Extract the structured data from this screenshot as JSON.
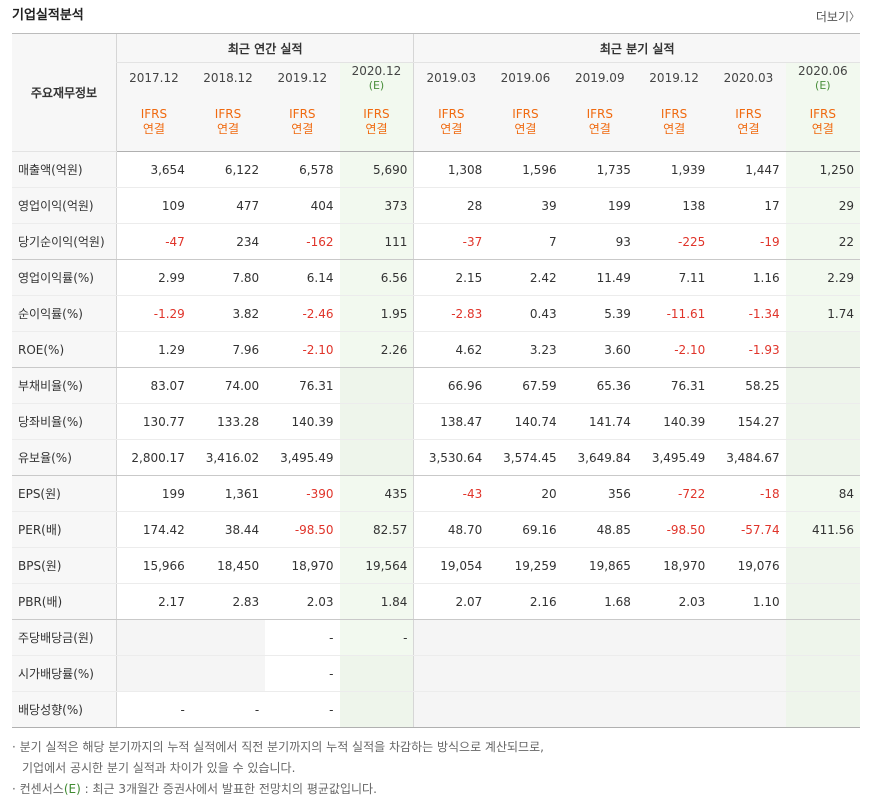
{
  "page_title": "기업실적분석",
  "more_label": "더보기",
  "more_arrow": "〉",
  "table": {
    "label_header": "주요재무정보",
    "groups": [
      {
        "label": "최근 연간 실적"
      },
      {
        "label": "최근 분기 실적"
      }
    ],
    "periods": [
      {
        "date": "2017.12",
        "est": "",
        "ifrs": "IFRS",
        "basis": "연결"
      },
      {
        "date": "2018.12",
        "est": "",
        "ifrs": "IFRS",
        "basis": "연결"
      },
      {
        "date": "2019.12",
        "est": "",
        "ifrs": "IFRS",
        "basis": "연결"
      },
      {
        "date": "2020.12",
        "est": "(E)",
        "ifrs": "IFRS",
        "basis": "연결"
      },
      {
        "date": "2019.03",
        "est": "",
        "ifrs": "IFRS",
        "basis": "연결"
      },
      {
        "date": "2019.06",
        "est": "",
        "ifrs": "IFRS",
        "basis": "연결"
      },
      {
        "date": "2019.09",
        "est": "",
        "ifrs": "IFRS",
        "basis": "연결"
      },
      {
        "date": "2019.12",
        "est": "",
        "ifrs": "IFRS",
        "basis": "연결"
      },
      {
        "date": "2020.03",
        "est": "",
        "ifrs": "IFRS",
        "basis": "연결"
      },
      {
        "date": "2020.06",
        "est": "(E)",
        "ifrs": "IFRS",
        "basis": "연결"
      }
    ],
    "rows": [
      {
        "label": "매출액(억원)",
        "values": [
          "3,654",
          "6,122",
          "6,578",
          "5,690",
          "1,308",
          "1,596",
          "1,735",
          "1,939",
          "1,447",
          "1,250"
        ]
      },
      {
        "label": "영업이익(억원)",
        "values": [
          "109",
          "477",
          "404",
          "373",
          "28",
          "39",
          "199",
          "138",
          "17",
          "29"
        ]
      },
      {
        "label": "당기순이익(억원)",
        "values": [
          "-47",
          "234",
          "-162",
          "111",
          "-37",
          "7",
          "93",
          "-225",
          "-19",
          "22"
        ]
      },
      {
        "label": "영업이익률(%)",
        "values": [
          "2.99",
          "7.80",
          "6.14",
          "6.56",
          "2.15",
          "2.42",
          "11.49",
          "7.11",
          "1.16",
          "2.29"
        ]
      },
      {
        "label": "순이익률(%)",
        "values": [
          "-1.29",
          "3.82",
          "-2.46",
          "1.95",
          "-2.83",
          "0.43",
          "5.39",
          "-11.61",
          "-1.34",
          "1.74"
        ]
      },
      {
        "label": "ROE(%)",
        "values": [
          "1.29",
          "7.96",
          "-2.10",
          "2.26",
          "4.62",
          "3.23",
          "3.60",
          "-2.10",
          "-1.93",
          ""
        ]
      },
      {
        "label": "부채비율(%)",
        "values": [
          "83.07",
          "74.00",
          "76.31",
          "",
          "66.96",
          "67.59",
          "65.36",
          "76.31",
          "58.25",
          ""
        ]
      },
      {
        "label": "당좌비율(%)",
        "values": [
          "130.77",
          "133.28",
          "140.39",
          "",
          "138.47",
          "140.74",
          "141.74",
          "140.39",
          "154.27",
          ""
        ]
      },
      {
        "label": "유보율(%)",
        "values": [
          "2,800.17",
          "3,416.02",
          "3,495.49",
          "",
          "3,530.64",
          "3,574.45",
          "3,649.84",
          "3,495.49",
          "3,484.67",
          ""
        ]
      },
      {
        "label": "EPS(원)",
        "values": [
          "199",
          "1,361",
          "-390",
          "435",
          "-43",
          "20",
          "356",
          "-722",
          "-18",
          "84"
        ]
      },
      {
        "label": "PER(배)",
        "values": [
          "174.42",
          "38.44",
          "-98.50",
          "82.57",
          "48.70",
          "69.16",
          "48.85",
          "-98.50",
          "-57.74",
          "411.56"
        ]
      },
      {
        "label": "BPS(원)",
        "values": [
          "15,966",
          "18,450",
          "18,970",
          "19,564",
          "19,054",
          "19,259",
          "19,865",
          "18,970",
          "19,076",
          ""
        ]
      },
      {
        "label": "PBR(배)",
        "values": [
          "2.17",
          "2.83",
          "2.03",
          "1.84",
          "2.07",
          "2.16",
          "1.68",
          "2.03",
          "1.10",
          ""
        ]
      },
      {
        "label": "주당배당금(원)",
        "values": [
          "",
          "",
          "-",
          "-",
          "",
          "",
          "",
          "",
          "",
          ""
        ]
      },
      {
        "label": "시가배당률(%)",
        "values": [
          "",
          "",
          "-",
          "",
          "",
          "",
          "",
          "",
          "",
          ""
        ]
      },
      {
        "label": "배당성향(%)",
        "values": [
          "-",
          "-",
          "-",
          "",
          "",
          "",
          "",
          "",
          "",
          ""
        ]
      }
    ],
    "group_end_rows": [
      2,
      5,
      8,
      12
    ],
    "negative_color": "#e0342a",
    "ifrs_color": "#f06a10",
    "estimate_color": "#4a8f3c"
  },
  "footnotes": {
    "line1": "분기 실적은 해당 분기까지의 누적 실적에서 직전 분기까지의 누적 실적을 차감하는 방식으로 계산되므로,",
    "line2": "기업에서 공시한 분기 실적과 차이가 있을 수 있습니다.",
    "line3_prefix": "컨센서스",
    "line3_mark": "(E)",
    "line3_rest": " : 최근 3개월간 증권사에서 발표한 전망치의 평균값입니다."
  }
}
